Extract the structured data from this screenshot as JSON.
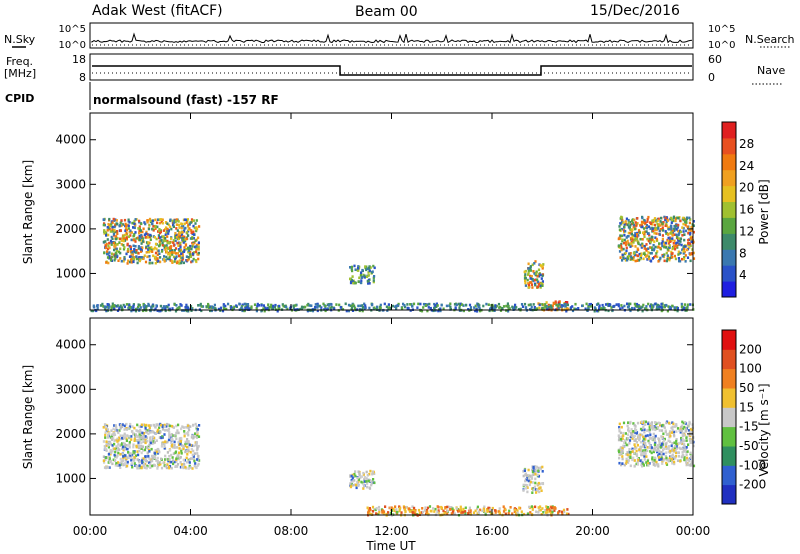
{
  "header": {
    "station": "Adak West (fitACF)",
    "beam": "Beam 00",
    "date": "15/Dec/2016"
  },
  "top_panels": {
    "nsky_label": "N.Sky",
    "nsearch_label": "N.Search",
    "nsky_ticks": [
      "10^5",
      "10^0"
    ],
    "nsearch_ticks": [
      "10^5",
      "10^0"
    ],
    "freq_label_1": "Freq.",
    "freq_label_2": "[MHz]",
    "freq_ticks": [
      "18",
      "8"
    ],
    "nave_label": "Nave",
    "nave_ticks": [
      "60",
      "0"
    ],
    "cpid_label": "CPID",
    "cpid_text": "normalsound (fast) -157 RF"
  },
  "chart_data": [
    {
      "type": "heatmap",
      "name": "power",
      "ylabel": "Slant Range [km]",
      "xlabel": "Time UT",
      "x_ticks": [
        "00:00",
        "04:00",
        "08:00",
        "12:00",
        "16:00",
        "20:00",
        "00:00"
      ],
      "xlim_hours": [
        0,
        24
      ],
      "y_ticks": [
        1000,
        2000,
        3000,
        4000
      ],
      "ylim_km": [
        180,
        4600
      ],
      "colorbar": {
        "label": "Power [dB]",
        "ticks": [
          "4",
          "8",
          "12",
          "16",
          "20",
          "24",
          "28"
        ],
        "colors": [
          "#1f1fe0",
          "#2a52c8",
          "#3a78b0",
          "#3d8a6a",
          "#5aa640",
          "#a0c030",
          "#e6c020",
          "#f0a020",
          "#f07a10",
          "#e85020",
          "#e02020"
        ]
      },
      "echo_regions": [
        {
          "t": [
            0.5,
            4.3
          ],
          "r": [
            1250,
            2250
          ],
          "level": "mixed-high",
          "desc": "near-range band echoes"
        },
        {
          "t": [
            10.3,
            11.3
          ],
          "r": [
            800,
            1200
          ],
          "level": "mixed"
        },
        {
          "t": [
            17.2,
            18.0
          ],
          "r": [
            700,
            1300
          ],
          "level": "mixed-high"
        },
        {
          "t": [
            17.8,
            19.0
          ],
          "r": [
            200,
            400
          ],
          "level": "high"
        },
        {
          "t": [
            21.0,
            24.0
          ],
          "r": [
            1300,
            2300
          ],
          "level": "mixed-high"
        },
        {
          "t": [
            0.0,
            24.0
          ],
          "r": [
            180,
            350
          ],
          "level": "low"
        }
      ]
    },
    {
      "type": "heatmap",
      "name": "velocity",
      "ylabel": "Slant Range [km]",
      "xlabel": "Time UT",
      "x_ticks": [
        "00:00",
        "04:00",
        "08:00",
        "12:00",
        "16:00",
        "20:00",
        "00:00"
      ],
      "xlim_hours": [
        0,
        24
      ],
      "y_ticks": [
        1000,
        2000,
        3000,
        4000
      ],
      "ylim_km": [
        180,
        4600
      ],
      "colorbar": {
        "label": "Velocity [m s⁻¹]",
        "ticks": [
          "200",
          "100",
          "50",
          "15",
          "-15",
          "-50",
          "-100",
          "-200"
        ],
        "colors": [
          "#2030c0",
          "#3060d0",
          "#2f8f5f",
          "#60c040",
          "#c8c8c8",
          "#f0c030",
          "#f08020",
          "#e05020",
          "#e01010"
        ]
      },
      "echo_regions": [
        {
          "t": [
            0.5,
            4.3
          ],
          "r": [
            1250,
            2250
          ],
          "level": "ground-scatter"
        },
        {
          "t": [
            10.3,
            11.3
          ],
          "r": [
            800,
            1200
          ],
          "level": "ground-scatter"
        },
        {
          "t": [
            17.2,
            18.0
          ],
          "r": [
            700,
            1300
          ],
          "level": "ground-scatter"
        },
        {
          "t": [
            11.0,
            19.0
          ],
          "r": [
            200,
            400
          ],
          "level": "negative"
        },
        {
          "t": [
            21.0,
            24.0
          ],
          "r": [
            1300,
            2300
          ],
          "level": "ground-scatter"
        }
      ]
    }
  ]
}
